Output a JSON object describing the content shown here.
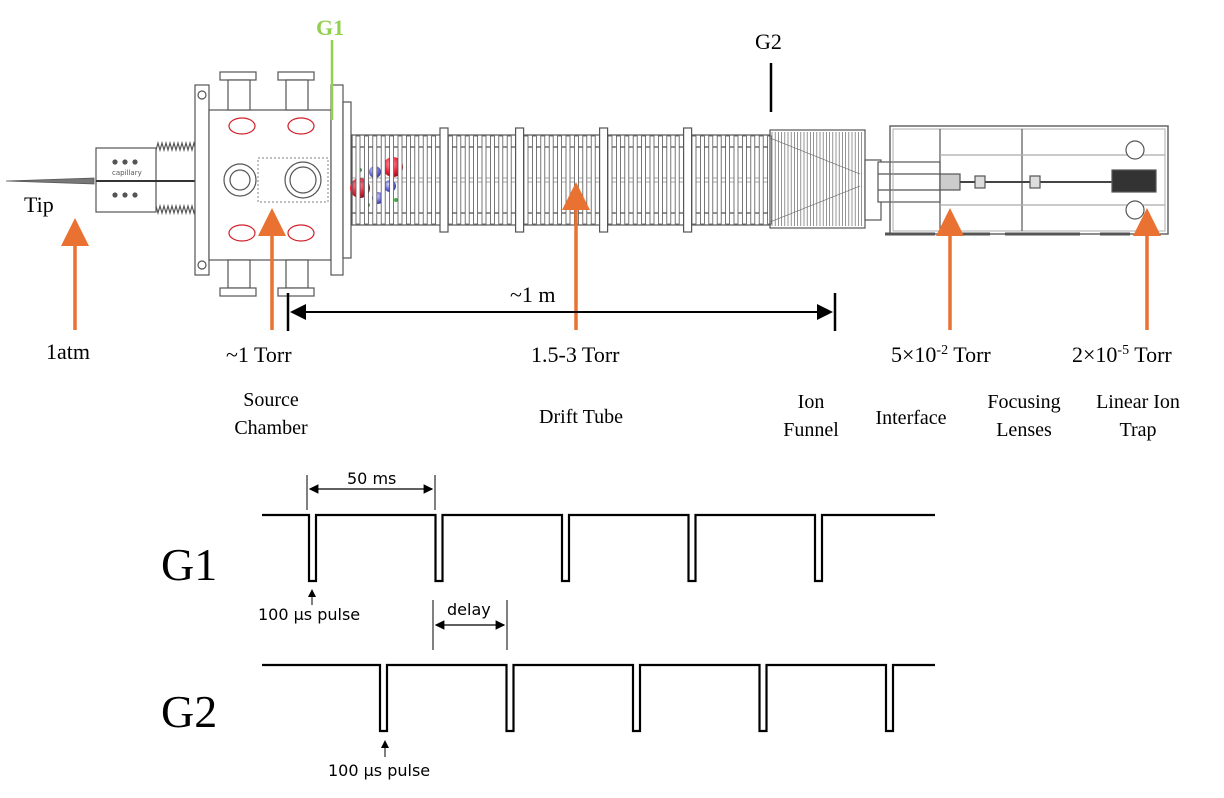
{
  "colors": {
    "arrow": "#E97132",
    "g1_gate": "#92D050",
    "line": "#000000",
    "apparatus": "#555555",
    "ion_red": "#E8283C",
    "ion_blue": "#6E6EE0",
    "ellipse": "#D0202A"
  },
  "labels": {
    "g1_gate": "G1",
    "g2_gate": "G2",
    "tip": "Tip",
    "capillary": "capillary",
    "distance": "~1 m",
    "p_1atm": "1atm",
    "p_1torr": "~1 Torr",
    "p_drift": "1.5-3 Torr",
    "p_interface_base": "5×10",
    "p_interface_exp": "-2",
    "p_interface_unit": " Torr",
    "p_trap_base": "2×10",
    "p_trap_exp": "-5",
    "p_trap_unit": " Torr",
    "source_line1": "Source",
    "source_line2": "Chamber",
    "drift_tube": "Drift Tube",
    "funnel_line1": "Ion",
    "funnel_line2": "Funnel",
    "interface": "Interface",
    "focusing_line1": "Focusing",
    "focusing_line2": "Lenses",
    "trap_line1": "Linear Ion",
    "trap_line2": "Trap"
  },
  "timing": {
    "period_label": "50 ms",
    "delay_label": "delay",
    "g1_trace_label": "G1",
    "g2_trace_label": "G2",
    "g1_pulse_label": "100 µs pulse",
    "g2_pulse_label": "100 µs pulse",
    "g1_pulse_count": 5,
    "g2_pulse_count": 5
  }
}
